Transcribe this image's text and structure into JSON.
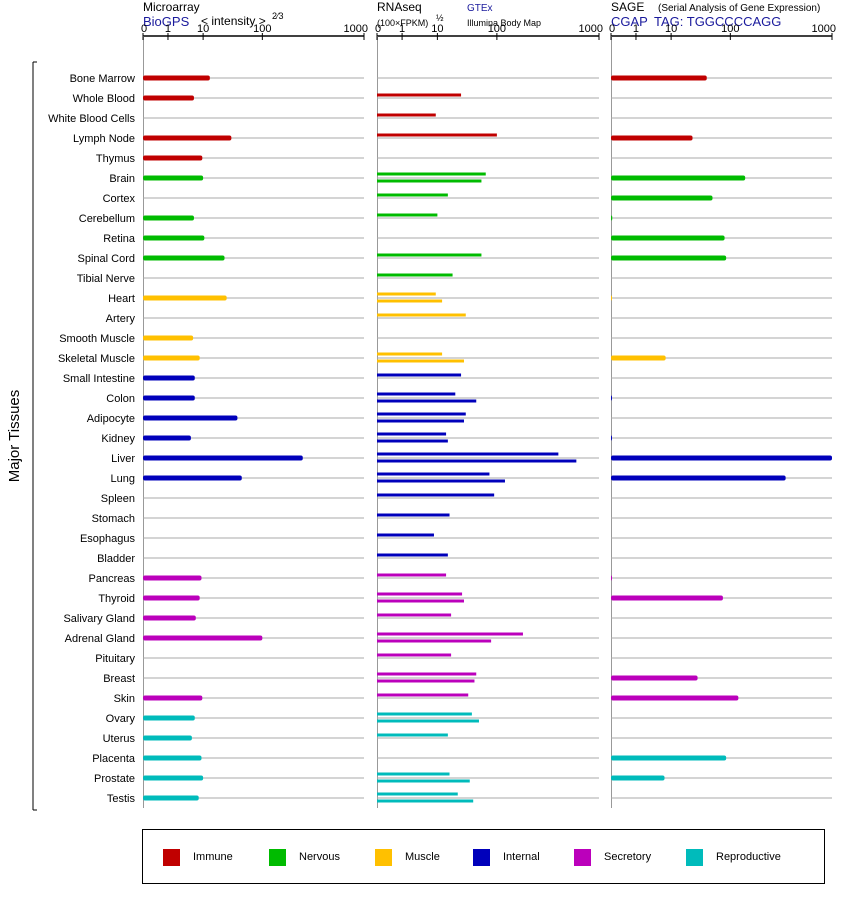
{
  "headers": {
    "microarray_title": "Microarray",
    "microarray_source": "BioGPS",
    "microarray_unit": "< intensity >",
    "microarray_exponent": "2⁄3",
    "rnaseq_title": "RNAseq",
    "rnaseq_unit": "(100×FPKM)",
    "rnaseq_exponent": "½",
    "rnaseq_source1": "GTEx",
    "rnaseq_source2": "Illumina Body Map",
    "sage_title": "SAGE",
    "sage_subtitle": "(Serial Analysis of Gene Expression)",
    "sage_source": "CGAP",
    "sage_tag": "TAG: TGGCCCCAGG"
  },
  "colors": {
    "Immune": "#c00000",
    "Nervous": "#00bb00",
    "Muscle": "#ffc000",
    "Internal": "#0000bb",
    "Secretory": "#bb00bb",
    "Reproductive": "#00bbbb"
  },
  "legend": [
    {
      "label": "Immune",
      "group": "Immune"
    },
    {
      "label": "Nervous",
      "group": "Nervous"
    },
    {
      "label": "Muscle",
      "group": "Muscle"
    },
    {
      "label": "Internal",
      "group": "Internal"
    },
    {
      "label": "Secretory",
      "group": "Secretory"
    },
    {
      "label": "Reproductive",
      "group": "Reproductive"
    }
  ],
  "chart_data": {
    "type": "bar",
    "orientation": "horizontal",
    "y_axis_label": "Major Tissues",
    "axis_ticks": [
      "0",
      "1",
      "10",
      "100",
      "1000"
    ],
    "axis_tick_values": [
      0,
      1,
      10,
      100,
      1000
    ],
    "scale": "power-compressed (ticks at 0, 1, 10, 100, 1000)",
    "panels": [
      "Microarray",
      "RNAseq",
      "SAGE"
    ],
    "tissues": [
      {
        "name": "Bone Marrow",
        "group": "Immune",
        "microarray": [
          13
        ],
        "rnaseq": [],
        "sage": [
          40
        ]
      },
      {
        "name": "Whole Blood",
        "group": "Immune",
        "microarray": [
          5.5
        ],
        "rnaseq": [
          25
        ],
        "sage": []
      },
      {
        "name": "White Blood Cells",
        "group": "Immune",
        "microarray": [],
        "rnaseq": [
          9
        ],
        "sage": []
      },
      {
        "name": "Lymph Node",
        "group": "Immune",
        "microarray": [
          30
        ],
        "rnaseq": [
          100
        ],
        "sage": [
          23
        ]
      },
      {
        "name": "Thymus",
        "group": "Immune",
        "microarray": [
          9.5
        ],
        "rnaseq": [],
        "sage": []
      },
      {
        "name": "Brain",
        "group": "Nervous",
        "microarray": [
          10
        ],
        "rnaseq": [
          65,
          55
        ],
        "sage": [
          140
        ]
      },
      {
        "name": "Cortex",
        "group": "Nervous",
        "microarray": [],
        "rnaseq": [
          15
        ],
        "sage": [
          50
        ]
      },
      {
        "name": "Cerebellum",
        "group": "Nervous",
        "microarray": [
          5.5
        ],
        "rnaseq": [
          10
        ],
        "sage": [
          0.05
        ]
      },
      {
        "name": "Retina",
        "group": "Nervous",
        "microarray": [
          10.5
        ],
        "rnaseq": [],
        "sage": [
          80
        ]
      },
      {
        "name": "Spinal Cord",
        "group": "Nervous",
        "microarray": [
          23
        ],
        "rnaseq": [
          55
        ],
        "sage": [
          85
        ]
      },
      {
        "name": "Tibial Nerve",
        "group": "Nervous",
        "microarray": [],
        "rnaseq": [
          18
        ],
        "sage": []
      },
      {
        "name": "Heart",
        "group": "Muscle",
        "microarray": [
          25
        ],
        "rnaseq": [
          9,
          12
        ],
        "sage": [
          0.01
        ]
      },
      {
        "name": "Artery",
        "group": "Muscle",
        "microarray": [],
        "rnaseq": [
          30
        ],
        "sage": []
      },
      {
        "name": "Smooth Muscle",
        "group": "Muscle",
        "microarray": [
          5.2
        ],
        "rnaseq": [],
        "sage": []
      },
      {
        "name": "Skeletal Muscle",
        "group": "Muscle",
        "microarray": [
          8
        ],
        "rnaseq": [
          12,
          28
        ],
        "sage": [
          7
        ]
      },
      {
        "name": "Small Intestine",
        "group": "Internal",
        "microarray": [
          5.8
        ],
        "rnaseq": [
          25
        ],
        "sage": []
      },
      {
        "name": "Colon",
        "group": "Internal",
        "microarray": [
          5.8
        ],
        "rnaseq": [
          20,
          45
        ],
        "sage": [
          0.02
        ]
      },
      {
        "name": "Adipocyte",
        "group": "Internal",
        "microarray": [
          38
        ],
        "rnaseq": [
          30,
          28
        ],
        "sage": []
      },
      {
        "name": "Kidney",
        "group": "Internal",
        "microarray": [
          4.5
        ],
        "rnaseq": [
          14,
          15
        ],
        "sage": [
          0.02
        ]
      },
      {
        "name": "Liver",
        "group": "Internal",
        "microarray": [
          250
        ],
        "rnaseq": [
          400,
          600
        ],
        "sage": [
          1000
        ]
      },
      {
        "name": "Lung",
        "group": "Internal",
        "microarray": [
          45
        ],
        "rnaseq": [
          75,
          120
        ],
        "sage": [
          350
        ]
      },
      {
        "name": "Spleen",
        "group": "Internal",
        "microarray": [],
        "rnaseq": [
          90
        ],
        "sage": []
      },
      {
        "name": "Stomach",
        "group": "Internal",
        "microarray": [],
        "rnaseq": [
          16
        ],
        "sage": []
      },
      {
        "name": "Esophagus",
        "group": "Internal",
        "microarray": [],
        "rnaseq": [
          8
        ],
        "sage": []
      },
      {
        "name": "Bladder",
        "group": "Internal",
        "microarray": [],
        "rnaseq": [
          15
        ],
        "sage": []
      },
      {
        "name": "Pancreas",
        "group": "Secretory",
        "microarray": [
          9
        ],
        "rnaseq": [
          14
        ],
        "sage": [
          0.01
        ]
      },
      {
        "name": "Thyroid",
        "group": "Secretory",
        "microarray": [
          8
        ],
        "rnaseq": [
          26,
          28
        ],
        "sage": [
          75
        ]
      },
      {
        "name": "Salivary Gland",
        "group": "Secretory",
        "microarray": [
          6.2
        ],
        "rnaseq": [
          17
        ],
        "sage": []
      },
      {
        "name": "Adrenal Gland",
        "group": "Secretory",
        "microarray": [
          100
        ],
        "rnaseq": [
          180,
          80
        ],
        "sage": []
      },
      {
        "name": "Pituitary",
        "group": "Secretory",
        "microarray": [],
        "rnaseq": [
          17
        ],
        "sage": []
      },
      {
        "name": "Breast",
        "group": "Secretory",
        "microarray": [],
        "rnaseq": [
          45,
          42
        ],
        "sage": [
          28
        ]
      },
      {
        "name": "Skin",
        "group": "Secretory",
        "microarray": [
          9.5
        ],
        "rnaseq": [
          33
        ],
        "sage": [
          120
        ]
      },
      {
        "name": "Ovary",
        "group": "Reproductive",
        "microarray": [
          5.8
        ],
        "rnaseq": [
          38,
          50
        ],
        "sage": []
      },
      {
        "name": "Uterus",
        "group": "Reproductive",
        "microarray": [
          4.8
        ],
        "rnaseq": [
          15
        ],
        "sage": []
      },
      {
        "name": "Placenta",
        "group": "Reproductive",
        "microarray": [
          9
        ],
        "rnaseq": [],
        "sage": [
          85
        ]
      },
      {
        "name": "Prostate",
        "group": "Reproductive",
        "microarray": [
          10
        ],
        "rnaseq": [
          16,
          35
        ],
        "sage": [
          6.5
        ]
      },
      {
        "name": "Testis",
        "group": "Reproductive",
        "microarray": [
          7.5
        ],
        "rnaseq": [
          22,
          40
        ],
        "sage": []
      }
    ]
  }
}
